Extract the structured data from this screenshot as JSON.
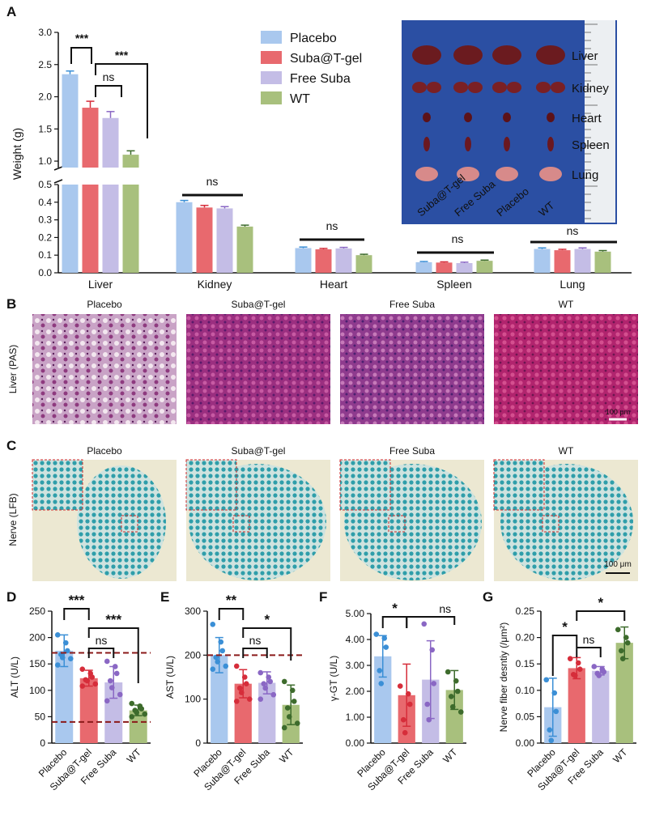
{
  "colors": {
    "placebo": "#a9c8ee",
    "suba_tgel": "#e8696e",
    "free_suba": "#c4bde6",
    "wt": "#a8c07d",
    "placebo_dot": "#3b8fd6",
    "suba_tgel_dot": "#d62d3a",
    "free_suba_dot": "#8a67c4",
    "wt_dot": "#3d6b2c",
    "threshold_line": "#8b1a1a",
    "photo_bg": "#2b4fa3",
    "photo_label": "#e8f06a"
  },
  "panels": {
    "A": {
      "letter": "A",
      "legend": [
        "Placebo",
        "Suba@T-gel",
        "Free Suba",
        "WT"
      ],
      "photo": {
        "organ_labels": [
          "Liver",
          "Kidney",
          "Heart",
          "Spleen",
          "Lung"
        ],
        "group_labels": [
          "Suba@T-gel",
          "Free Suba",
          "Placebo",
          "WT"
        ]
      }
    },
    "B": {
      "letter": "B",
      "row_label": "Liver (PAS)",
      "titles": [
        "Placebo",
        "Suba@T-gel",
        "Free Suba",
        "WT"
      ],
      "scale_bar": "100 μm"
    },
    "C": {
      "letter": "C",
      "row_label": "Nerve (LFB)",
      "titles": [
        "Placebo",
        "Suba@T-gel",
        "Free Suba",
        "WT"
      ],
      "scale_bar": "100 μm"
    },
    "D": {
      "letter": "D"
    },
    "E": {
      "letter": "E"
    },
    "F": {
      "letter": "F"
    },
    "G": {
      "letter": "G"
    }
  },
  "chart_data": [
    {
      "id": "A",
      "type": "bar",
      "ylabel": "Weight (g)",
      "categories": [
        "Liver",
        "Kidney",
        "Heart",
        "Spleen",
        "Lung"
      ],
      "axis_break": {
        "lower_range": [
          0,
          0.5
        ],
        "upper_range": [
          0.9,
          3.0
        ]
      },
      "lower_ticks": [
        "0.0",
        "0.1",
        "0.2",
        "0.3",
        "0.4",
        "0.5"
      ],
      "upper_ticks": [
        "1.0",
        "1.5",
        "2.0",
        "2.5",
        "3.0"
      ],
      "series": [
        {
          "name": "Placebo",
          "values": [
            2.35,
            0.4,
            0.14,
            0.06,
            0.135
          ],
          "errors": [
            0.05,
            0.01,
            0.006,
            0.004,
            0.006
          ]
        },
        {
          "name": "Suba@T-gel",
          "values": [
            1.83,
            0.37,
            0.133,
            0.058,
            0.128
          ],
          "errors": [
            0.1,
            0.012,
            0.005,
            0.004,
            0.005
          ]
        },
        {
          "name": "Free Suba",
          "values": [
            1.67,
            0.365,
            0.138,
            0.055,
            0.135
          ],
          "errors": [
            0.1,
            0.01,
            0.006,
            0.005,
            0.006
          ]
        },
        {
          "name": "WT",
          "values": [
            1.1,
            0.262,
            0.1,
            0.068,
            0.12
          ],
          "errors": [
            0.06,
            0.008,
            0.005,
            0.004,
            0.006
          ]
        }
      ],
      "annotations": [
        "***",
        "ns",
        "***",
        "ns",
        "ns",
        "ns",
        "ns"
      ]
    },
    {
      "id": "D",
      "type": "bar",
      "ylabel": "ALT (U/L)",
      "categories": [
        "Placebo",
        "Suba@T-gel",
        "Free Suba",
        "WT"
      ],
      "ylim": [
        0,
        250
      ],
      "ticks": [
        "0",
        "50",
        "100",
        "150",
        "200",
        "250"
      ],
      "means": [
        175,
        123,
        115,
        62
      ],
      "errors": [
        30,
        15,
        30,
        10
      ],
      "points": [
        [
          205,
          190,
          175,
          168,
          162,
          160,
          148
        ],
        [
          140,
          132,
          125,
          120,
          118,
          112,
          108
        ],
        [
          155,
          145,
          132,
          118,
          105,
          92,
          80
        ],
        [
          75,
          70,
          65,
          62,
          58,
          55,
          50
        ]
      ],
      "thresholds": [
        171,
        40
      ],
      "annotations": [
        "***",
        "ns",
        "***"
      ]
    },
    {
      "id": "E",
      "type": "bar",
      "ylabel": "AST (U/L)",
      "categories": [
        "Placebo",
        "Suba@T-gel",
        "Free Suba",
        "WT"
      ],
      "ylim": [
        0,
        300
      ],
      "ticks": [
        "0",
        "100",
        "200",
        "300"
      ],
      "means": [
        200,
        135,
        137,
        87
      ],
      "errors": [
        40,
        32,
        25,
        45
      ],
      "points": [
        [
          270,
          230,
          210,
          195,
          185,
          175,
          168
        ],
        [
          175,
          150,
          135,
          125,
          115,
          100,
          95
        ],
        [
          160,
          150,
          140,
          135,
          125,
          110,
          100
        ],
        [
          140,
          120,
          95,
          80,
          60,
          45,
          35
        ]
      ],
      "thresholds": [
        200
      ],
      "annotations": [
        "**",
        "ns",
        "*"
      ]
    },
    {
      "id": "F",
      "type": "bar",
      "ylabel": "γ-GT (U/L)",
      "categories": [
        "Placebo",
        "Suba@T-gel",
        "Free Suba",
        "WT"
      ],
      "ylim": [
        0,
        5
      ],
      "ticks": [
        "0.00",
        "1.00",
        "2.00",
        "3.00",
        "4.00",
        "5.00"
      ],
      "means": [
        3.35,
        1.85,
        2.45,
        2.05
      ],
      "errors": [
        0.8,
        1.2,
        1.5,
        0.75
      ],
      "points": [
        [
          4.2,
          4.05,
          3.7,
          2.8,
          2.3
        ],
        [
          2.2,
          1.9,
          1.5,
          0.9,
          0.4
        ],
        [
          4.6,
          3.6,
          2.3,
          1.5,
          0.9
        ],
        [
          2.75,
          2.4,
          2.0,
          1.8,
          1.4,
          1.2
        ]
      ],
      "annotations": [
        "*",
        "ns"
      ]
    },
    {
      "id": "G",
      "type": "bar",
      "ylabel": "Nerve fiber desntiy (/μm²)",
      "categories": [
        "Placebo",
        "Suba@T-gel",
        "Free Suba",
        "WT"
      ],
      "ylim": [
        0,
        0.25
      ],
      "ticks": [
        "0.00",
        "0.05",
        "0.10",
        "0.15",
        "0.20",
        "0.25"
      ],
      "means": [
        0.068,
        0.142,
        0.137,
        0.19
      ],
      "errors": [
        0.055,
        0.02,
        0.008,
        0.03
      ],
      "points": [
        [
          0.12,
          0.095,
          0.06,
          0.025,
          0.005
        ],
        [
          0.16,
          0.152,
          0.14,
          0.13,
          0.128
        ],
        [
          0.145,
          0.14,
          0.135,
          0.132,
          0.128
        ],
        [
          0.215,
          0.2,
          0.19,
          0.175,
          0.16
        ]
      ],
      "annotations": [
        "*",
        "ns",
        "*"
      ]
    }
  ]
}
